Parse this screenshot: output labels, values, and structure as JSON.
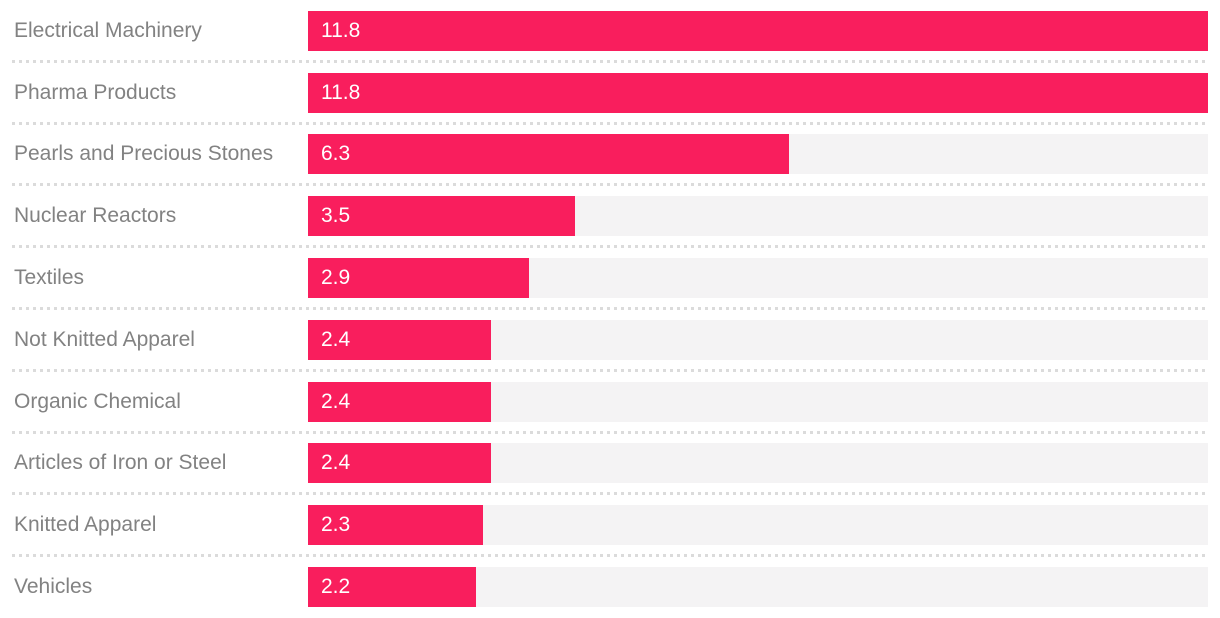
{
  "chart_data": {
    "type": "bar",
    "orientation": "horizontal",
    "title": "",
    "xlabel": "",
    "ylabel": "",
    "xlim": [
      0,
      11.8
    ],
    "grid": false,
    "legend": false,
    "categories": [
      "Electrical Machinery",
      "Pharma Products",
      "Pearls and Precious Stones",
      "Nuclear Reactors",
      "Textiles",
      "Not Knitted Apparel",
      "Organic Chemical",
      "Articles of Iron or Steel",
      "Knitted Apparel",
      "Vehicles"
    ],
    "values": [
      11.8,
      11.8,
      6.3,
      3.5,
      2.9,
      2.4,
      2.4,
      2.4,
      2.3,
      2.2
    ],
    "value_labels": [
      "11.8",
      "11.8",
      "6.3",
      "3.5",
      "2.9",
      "2.4",
      "2.4",
      "2.4",
      "2.3",
      "2.2"
    ],
    "colors": {
      "bar": "#F91E5D",
      "track": "#F4F3F4",
      "label_text": "#828282",
      "value_text": "#FFFFFF",
      "separator": "#DBDBDB",
      "background": "#FFFFFF"
    }
  }
}
